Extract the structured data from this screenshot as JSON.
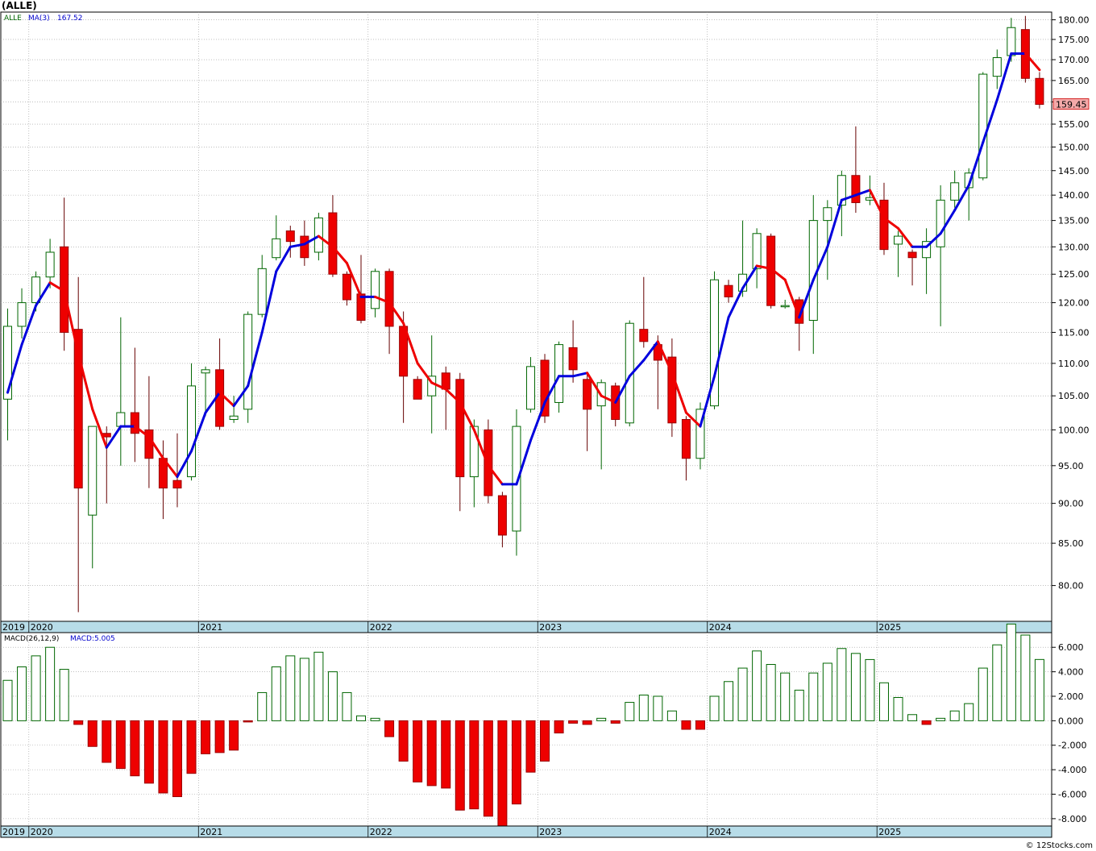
{
  "title": "(ALLE)",
  "credit": "© 12Stocks.com",
  "price_panel": {
    "legend_symbol": "ALLE",
    "legend_ma": "MA(3)",
    "legend_ma_value": "167.52",
    "last_price_label": "159.45",
    "y_ticks": [
      "180.00",
      "175.00",
      "170.00",
      "165.00",
      "160.00",
      "155.00",
      "150.00",
      "145.00",
      "140.00",
      "135.00",
      "130.00",
      "125.00",
      "120.00",
      "115.00",
      "110.00",
      "105.00",
      "100.00",
      "95.00",
      "90.00",
      "85.00",
      "80.00"
    ]
  },
  "macd_panel": {
    "legend_label": "MACD(26,12,9)",
    "legend_value": "MACD:5.005",
    "y_ticks": [
      "6.000",
      "4.000",
      "2.000",
      "0.000",
      "-2.000",
      "-4.000",
      "-6.000",
      "-8.000"
    ]
  },
  "x_axis": {
    "year_labels": [
      "2019",
      "2020",
      "2021",
      "2022",
      "2023",
      "2024",
      "2025"
    ]
  },
  "colors": {
    "up_outline": "#006600",
    "down_fill": "#ee0000",
    "ma_up": "#0000dd",
    "ma_down": "#ee0000",
    "axis_band": "#b7dce8",
    "grid": "#999999"
  },
  "chart_data": [
    {
      "type": "candlestick",
      "title": "(ALLE)",
      "interval": "monthly",
      "ylim": [
        76,
        182
      ],
      "y_scale": "log",
      "grid": true,
      "candles": [
        {
          "date": "2019-11",
          "open": 104.5,
          "high": 119.0,
          "low": 98.5,
          "close": 116.0
        },
        {
          "date": "2019-12",
          "open": 116.0,
          "high": 122.5,
          "low": 114.0,
          "close": 120.0
        },
        {
          "date": "2020-01",
          "open": 120.0,
          "high": 125.5,
          "low": 118.5,
          "close": 124.5
        },
        {
          "date": "2020-02",
          "open": 124.5,
          "high": 131.5,
          "low": 122.5,
          "close": 129.0
        },
        {
          "date": "2020-03",
          "open": 130.0,
          "high": 139.5,
          "low": 112.0,
          "close": 115.0
        },
        {
          "date": "2020-04",
          "open": 115.5,
          "high": 124.5,
          "low": 77.0,
          "close": 92.0
        },
        {
          "date": "2020-05",
          "open": 88.5,
          "high": 100.5,
          "low": 82.0,
          "close": 100.5
        },
        {
          "date": "2020-06",
          "open": 99.5,
          "high": 100.5,
          "low": 90.0,
          "close": 99.0
        },
        {
          "date": "2020-07",
          "open": 100.5,
          "high": 117.5,
          "low": 95.0,
          "close": 102.5
        },
        {
          "date": "2020-08",
          "open": 102.5,
          "high": 112.5,
          "low": 95.5,
          "close": 99.5
        },
        {
          "date": "2020-09",
          "open": 100.0,
          "high": 108.0,
          "low": 92.0,
          "close": 96.0
        },
        {
          "date": "2020-10",
          "open": 96.0,
          "high": 98.5,
          "low": 88.0,
          "close": 92.0
        },
        {
          "date": "2020-11",
          "open": 93.0,
          "high": 99.5,
          "low": 89.5,
          "close": 92.0
        },
        {
          "date": "2020-12",
          "open": 93.5,
          "high": 110.0,
          "low": 93.0,
          "close": 106.5
        },
        {
          "date": "2021-01",
          "open": 108.5,
          "high": 109.5,
          "low": 102.0,
          "close": 109.0
        },
        {
          "date": "2021-02",
          "open": 109.0,
          "high": 114.0,
          "low": 100.0,
          "close": 100.5
        },
        {
          "date": "2021-03",
          "open": 101.5,
          "high": 105.0,
          "low": 101.0,
          "close": 102.0
        },
        {
          "date": "2021-04",
          "open": 103.0,
          "high": 118.5,
          "low": 101.0,
          "close": 118.0
        },
        {
          "date": "2021-05",
          "open": 118.0,
          "high": 128.5,
          "low": 117.5,
          "close": 126.0
        },
        {
          "date": "2021-06",
          "open": 128.0,
          "high": 136.0,
          "low": 127.5,
          "close": 131.5
        },
        {
          "date": "2021-07",
          "open": 133.0,
          "high": 134.0,
          "low": 128.0,
          "close": 131.0
        },
        {
          "date": "2021-08",
          "open": 132.0,
          "high": 135.0,
          "low": 126.5,
          "close": 128.0
        },
        {
          "date": "2021-09",
          "open": 129.0,
          "high": 136.5,
          "low": 127.5,
          "close": 135.5
        },
        {
          "date": "2021-10",
          "open": 136.5,
          "high": 140.0,
          "low": 124.5,
          "close": 125.0
        },
        {
          "date": "2021-11",
          "open": 125.0,
          "high": 125.5,
          "low": 119.5,
          "close": 120.5
        },
        {
          "date": "2021-12",
          "open": 121.5,
          "high": 128.5,
          "low": 116.5,
          "close": 117.0
        },
        {
          "date": "2022-01",
          "open": 119.0,
          "high": 126.0,
          "low": 117.5,
          "close": 125.5
        },
        {
          "date": "2022-02",
          "open": 125.5,
          "high": 126.0,
          "low": 111.5,
          "close": 116.0
        },
        {
          "date": "2022-03",
          "open": 116.0,
          "high": 118.5,
          "low": 101.0,
          "close": 108.0
        },
        {
          "date": "2022-04",
          "open": 107.5,
          "high": 108.0,
          "low": 104.5,
          "close": 104.5
        },
        {
          "date": "2022-05",
          "open": 105.0,
          "high": 114.5,
          "low": 99.5,
          "close": 108.0
        },
        {
          "date": "2022-06",
          "open": 108.5,
          "high": 109.5,
          "low": 100.0,
          "close": 106.0
        },
        {
          "date": "2022-07",
          "open": 107.5,
          "high": 108.5,
          "low": 89.0,
          "close": 93.5
        },
        {
          "date": "2022-08",
          "open": 93.5,
          "high": 101.5,
          "low": 89.5,
          "close": 100.5
        },
        {
          "date": "2022-09",
          "open": 100.0,
          "high": 101.5,
          "low": 90.0,
          "close": 91.0
        },
        {
          "date": "2022-10",
          "open": 91.0,
          "high": 91.5,
          "low": 84.5,
          "close": 86.0
        },
        {
          "date": "2022-11",
          "open": 86.5,
          "high": 103.0,
          "low": 83.5,
          "close": 100.5
        },
        {
          "date": "2022-12",
          "open": 103.0,
          "high": 111.0,
          "low": 102.5,
          "close": 109.5
        },
        {
          "date": "2023-01",
          "open": 110.5,
          "high": 111.5,
          "low": 101.0,
          "close": 102.0
        },
        {
          "date": "2023-02",
          "open": 104.0,
          "high": 113.5,
          "low": 102.5,
          "close": 113.0
        },
        {
          "date": "2023-03",
          "open": 112.5,
          "high": 117.0,
          "low": 107.0,
          "close": 109.0
        },
        {
          "date": "2023-04",
          "open": 107.5,
          "high": 108.5,
          "low": 97.0,
          "close": 103.0
        },
        {
          "date": "2023-05",
          "open": 103.5,
          "high": 107.5,
          "low": 94.5,
          "close": 107.0
        },
        {
          "date": "2023-06",
          "open": 106.5,
          "high": 107.0,
          "low": 100.5,
          "close": 101.5
        },
        {
          "date": "2023-07",
          "open": 101.0,
          "high": 117.0,
          "low": 100.5,
          "close": 116.5
        },
        {
          "date": "2023-08",
          "open": 115.5,
          "high": 124.5,
          "low": 112.5,
          "close": 113.5
        },
        {
          "date": "2023-09",
          "open": 113.0,
          "high": 114.5,
          "low": 103.0,
          "close": 110.5
        },
        {
          "date": "2023-10",
          "open": 111.0,
          "high": 114.0,
          "low": 99.0,
          "close": 101.0
        },
        {
          "date": "2023-11",
          "open": 101.5,
          "high": 102.0,
          "low": 93.0,
          "close": 96.0
        },
        {
          "date": "2023-12",
          "open": 96.0,
          "high": 104.0,
          "low": 94.5,
          "close": 103.0
        },
        {
          "date": "2024-01",
          "open": 103.5,
          "high": 125.5,
          "low": 103.0,
          "close": 124.0
        },
        {
          "date": "2024-02",
          "open": 123.0,
          "high": 124.0,
          "low": 120.0,
          "close": 121.0
        },
        {
          "date": "2024-03",
          "open": 122.0,
          "high": 135.0,
          "low": 121.0,
          "close": 125.0
        },
        {
          "date": "2024-04",
          "open": 126.0,
          "high": 133.5,
          "low": 122.5,
          "close": 132.5
        },
        {
          "date": "2024-05",
          "open": 132.0,
          "high": 132.5,
          "low": 119.0,
          "close": 119.5
        },
        {
          "date": "2024-06",
          "open": 119.5,
          "high": 120.5,
          "low": 119.0,
          "close": 119.5
        },
        {
          "date": "2024-07",
          "open": 120.5,
          "high": 121.0,
          "low": 112.0,
          "close": 116.5
        },
        {
          "date": "2024-08",
          "open": 117.0,
          "high": 140.0,
          "low": 111.5,
          "close": 135.0
        },
        {
          "date": "2024-09",
          "open": 135.0,
          "high": 139.0,
          "low": 124.0,
          "close": 137.5
        },
        {
          "date": "2024-10",
          "open": 138.0,
          "high": 145.0,
          "low": 132.0,
          "close": 144.0
        },
        {
          "date": "2024-11",
          "open": 144.0,
          "high": 154.5,
          "low": 136.5,
          "close": 138.5
        },
        {
          "date": "2024-12",
          "open": 139.0,
          "high": 144.0,
          "low": 138.0,
          "close": 139.5
        },
        {
          "date": "2025-01",
          "open": 139.0,
          "high": 142.5,
          "low": 128.5,
          "close": 129.5
        },
        {
          "date": "2025-02",
          "open": 130.5,
          "high": 133.0,
          "low": 124.5,
          "close": 132.0
        },
        {
          "date": "2025-03",
          "open": 129.0,
          "high": 129.5,
          "low": 123.0,
          "close": 128.0
        },
        {
          "date": "2025-04",
          "open": 128.0,
          "high": 133.5,
          "low": 121.5,
          "close": 131.0
        },
        {
          "date": "2025-05",
          "open": 130.0,
          "high": 142.0,
          "low": 116.0,
          "close": 139.0
        },
        {
          "date": "2025-06",
          "open": 139.0,
          "high": 145.0,
          "low": 137.5,
          "close": 142.5
        },
        {
          "date": "2025-07",
          "open": 141.5,
          "high": 145.5,
          "low": 135.0,
          "close": 144.5
        },
        {
          "date": "2025-08",
          "open": 143.5,
          "high": 167.0,
          "low": 143.0,
          "close": 166.5
        },
        {
          "date": "2025-09",
          "open": 166.0,
          "high": 172.5,
          "low": 163.0,
          "close": 170.5
        },
        {
          "date": "2025-10",
          "open": 171.0,
          "high": 180.5,
          "low": 169.5,
          "close": 178.0
        },
        {
          "date": "2025-11",
          "open": 177.5,
          "high": 181.0,
          "low": 164.5,
          "close": 165.5
        },
        {
          "date": "2025-12",
          "open": 165.5,
          "high": 167.0,
          "low": 158.5,
          "close": 159.45
        }
      ],
      "moving_average": {
        "name": "MA(3)",
        "values": [
          105.5,
          113.0,
          119.5,
          123.5,
          122.0,
          111.5,
          103.0,
          97.5,
          100.5,
          100.5,
          99.0,
          96.0,
          93.5,
          97.0,
          102.5,
          105.5,
          103.5,
          106.5,
          115.0,
          125.5,
          130.0,
          130.5,
          132.0,
          130.0,
          127.0,
          121.0,
          121.0,
          120.0,
          116.5,
          110.0,
          107.0,
          106.0,
          104.0,
          100.0,
          95.0,
          92.5,
          92.5,
          98.5,
          104.0,
          108.0,
          108.0,
          108.5,
          105.0,
          104.0,
          108.0,
          110.5,
          113.5,
          108.5,
          102.5,
          100.5,
          108.0,
          117.5,
          122.5,
          126.5,
          126.0,
          124.0,
          117.5,
          124.0,
          130.0,
          139.0,
          140.0,
          141.0,
          135.5,
          133.5,
          130.0,
          130.0,
          132.5,
          137.0,
          142.0,
          151.0,
          160.5,
          171.5,
          171.5,
          167.52
        ]
      }
    },
    {
      "type": "bar",
      "title": "MACD(26,12,9)",
      "ylim": [
        -8.6,
        7.2
      ],
      "grid": true,
      "series": [
        {
          "name": "MACD",
          "values": [
            3.3,
            4.4,
            5.3,
            6.0,
            4.2,
            -0.3,
            -2.1,
            -3.4,
            -3.9,
            -4.5,
            -5.1,
            -5.9,
            -6.2,
            -4.3,
            -2.7,
            -2.6,
            -2.4,
            -0.1,
            2.3,
            4.4,
            5.3,
            5.1,
            5.6,
            4.0,
            2.3,
            0.4,
            0.2,
            -1.3,
            -3.3,
            -5.0,
            -5.3,
            -5.5,
            -7.3,
            -7.2,
            -7.8,
            -8.6,
            -6.8,
            -4.2,
            -3.3,
            -1.0,
            -0.2,
            -0.3,
            0.2,
            -0.2,
            1.5,
            2.1,
            2.0,
            0.8,
            -0.7,
            -0.7,
            2.0,
            3.2,
            4.3,
            5.7,
            4.6,
            3.9,
            2.5,
            3.9,
            4.7,
            5.9,
            5.5,
            5.0,
            3.1,
            1.9,
            0.5,
            -0.3,
            0.2,
            0.8,
            1.4,
            4.3,
            6.2,
            7.9,
            7.0,
            5.005
          ]
        }
      ]
    }
  ]
}
